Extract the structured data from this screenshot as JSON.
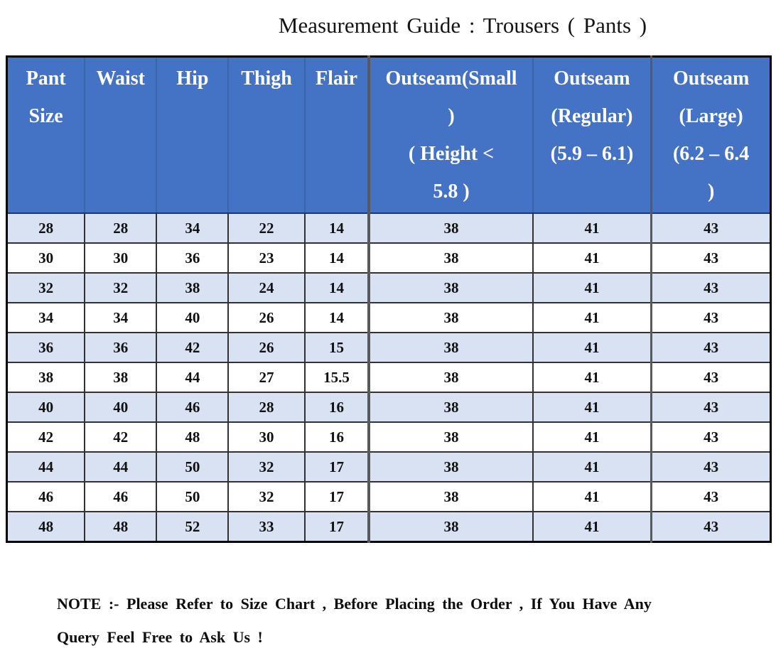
{
  "title": "Measurement Guide : Trousers ( Pants )",
  "table": {
    "headers": [
      {
        "id": "pant-size",
        "label": "Pant\nSize"
      },
      {
        "id": "waist",
        "label": "Waist"
      },
      {
        "id": "hip",
        "label": "Hip"
      },
      {
        "id": "thigh",
        "label": "Thigh"
      },
      {
        "id": "flair",
        "label": "Flair"
      },
      {
        "id": "outseam-small",
        "label": "Outseam(Small\n)\n( Height <\n5.8 )"
      },
      {
        "id": "outseam-regular",
        "label": "Outseam\n(Regular)\n(5.9 – 6.1)"
      },
      {
        "id": "outseam-large",
        "label": "Outseam\n(Large)\n(6.2 – 6.4\n)"
      }
    ],
    "rows": [
      [
        "28",
        "28",
        "34",
        "22",
        "14",
        "38",
        "41",
        "43"
      ],
      [
        "30",
        "30",
        "36",
        "23",
        "14",
        "38",
        "41",
        "43"
      ],
      [
        "32",
        "32",
        "38",
        "24",
        "14",
        "38",
        "41",
        "43"
      ],
      [
        "34",
        "34",
        "40",
        "26",
        "14",
        "38",
        "41",
        "43"
      ],
      [
        "36",
        "36",
        "42",
        "26",
        "15",
        "38",
        "41",
        "43"
      ],
      [
        "38",
        "38",
        "44",
        "27",
        "15.5",
        "38",
        "41",
        "43"
      ],
      [
        "40",
        "40",
        "46",
        "28",
        "16",
        "38",
        "41",
        "43"
      ],
      [
        "42",
        "42",
        "48",
        "30",
        "16",
        "38",
        "41",
        "43"
      ],
      [
        "44",
        "44",
        "50",
        "32",
        "17",
        "38",
        "41",
        "43"
      ],
      [
        "46",
        "46",
        "50",
        "32",
        "17",
        "38",
        "41",
        "43"
      ],
      [
        "48",
        "48",
        "52",
        "33",
        "17",
        "38",
        "41",
        "43"
      ]
    ]
  },
  "note": "NOTE :- Please Refer to Size Chart , Before Placing the Order , If You Have Any\nQuery Feel Free to Ask Us !",
  "colors": {
    "header_bg": "#4472C4",
    "header_text": "#FFFFFF",
    "row_alt_bg": "#D9E2F3",
    "row_bg": "#FFFFFF",
    "outer_border": "#000000",
    "thick_rule": "#595959"
  }
}
